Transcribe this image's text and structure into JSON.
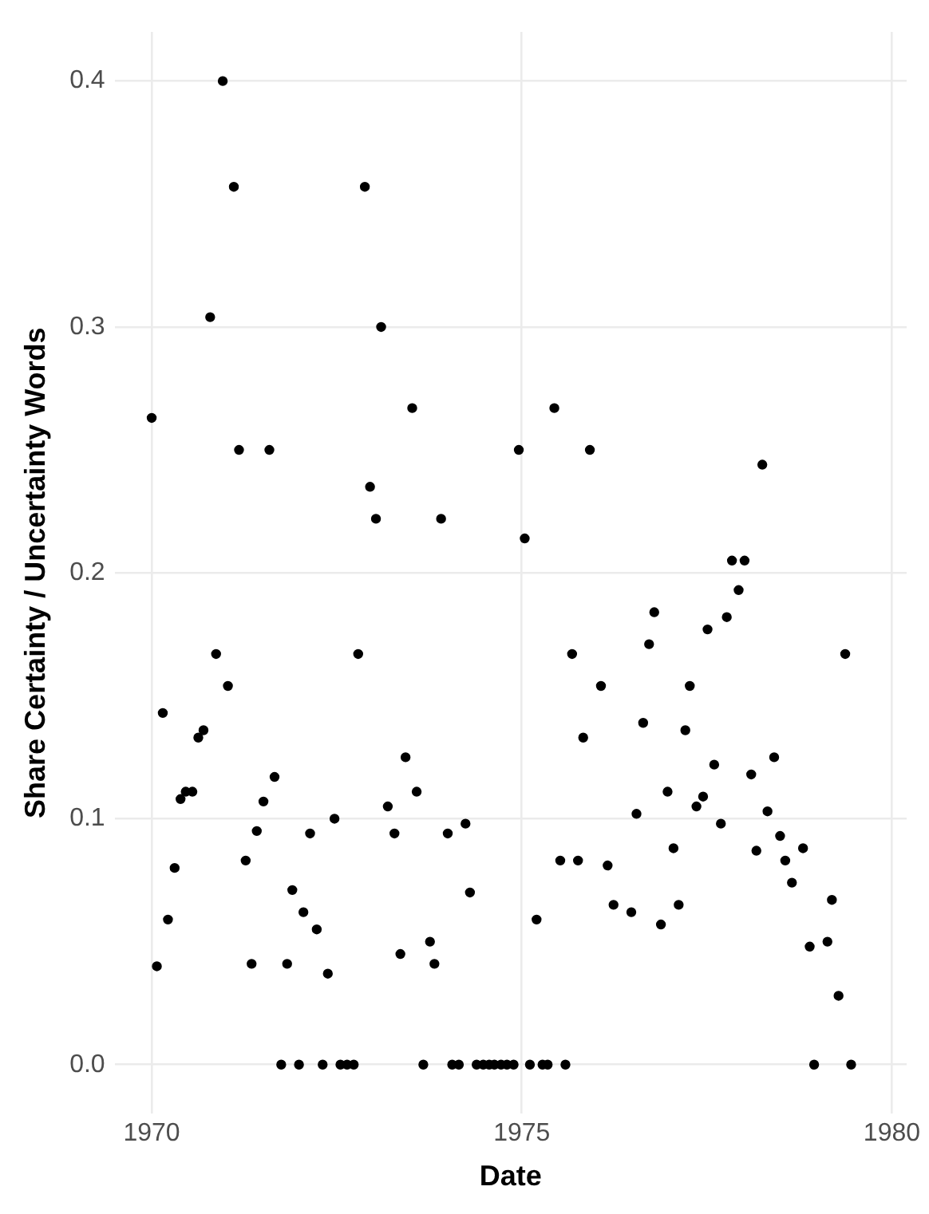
{
  "chart_data": {
    "type": "scatter",
    "xlabel": "Date",
    "ylabel": "Share Certainty / Uncertainty Words",
    "xlim": [
      1969.5,
      1980.2
    ],
    "xticks": [
      1970,
      1975,
      1980
    ],
    "ylim": [
      -0.02,
      0.42
    ],
    "yticks": [
      {
        "value": 0,
        "label": "0.0"
      },
      0.1,
      0.2,
      0.3,
      0.4
    ],
    "grid": true,
    "marker": "circle",
    "legend": false,
    "series": [
      {
        "color": "#000000",
        "x": [
          1970.0,
          1970.07,
          1970.15,
          1970.22,
          1970.31,
          1970.39,
          1970.46,
          1970.55,
          1970.63,
          1970.7,
          1970.79,
          1970.87,
          1970.96,
          1971.03,
          1971.11,
          1971.18,
          1971.27,
          1971.35,
          1971.42,
          1971.51,
          1971.59,
          1971.66,
          1971.75,
          1971.83,
          1971.9,
          1971.99,
          1972.05,
          1972.14,
          1972.23,
          1972.31,
          1972.38,
          1972.47,
          1972.55,
          1972.64,
          1972.73,
          1972.79,
          1972.88,
          1972.95,
          1973.03,
          1973.1,
          1973.19,
          1973.28,
          1973.36,
          1973.43,
          1973.52,
          1973.58,
          1973.67,
          1973.76,
          1973.82,
          1973.91,
          1974.0,
          1974.06,
          1974.15,
          1974.24,
          1974.3,
          1974.39,
          1974.48,
          1974.56,
          1974.63,
          1974.72,
          1974.8,
          1974.89,
          1974.96,
          1975.04,
          1975.11,
          1975.2,
          1975.28,
          1975.35,
          1975.44,
          1975.52,
          1975.59,
          1975.68,
          1975.76,
          1975.83,
          1975.92,
          1976.07,
          1976.16,
          1976.24,
          1976.48,
          1976.55,
          1976.64,
          1976.72,
          1976.79,
          1976.88,
          1976.97,
          1977.05,
          1977.12,
          1977.21,
          1977.27,
          1977.36,
          1977.45,
          1977.51,
          1977.6,
          1977.69,
          1977.77,
          1977.84,
          1977.93,
          1978.01,
          1978.1,
          1978.17,
          1978.25,
          1978.32,
          1978.41,
          1978.49,
          1978.56,
          1978.65,
          1978.8,
          1978.89,
          1978.95,
          1979.13,
          1979.19,
          1979.28,
          1979.37,
          1979.45
        ],
        "values": [
          0.263,
          0.04,
          0.143,
          0.059,
          0.08,
          0.108,
          0.111,
          0.111,
          0.133,
          0.136,
          0.304,
          0.167,
          0.4,
          0.154,
          0.357,
          0.25,
          0.083,
          0.041,
          0.095,
          0.107,
          0.25,
          0.117,
          0,
          0.041,
          0.071,
          0,
          0.062,
          0.094,
          0.055,
          0,
          0.037,
          0.1,
          0,
          0,
          0,
          0.167,
          0.357,
          0.235,
          0.222,
          0.3,
          0.105,
          0.094,
          0.045,
          0.125,
          0.267,
          0.111,
          0,
          0.05,
          0.041,
          0.222,
          0.094,
          0,
          0,
          0.098,
          0.07,
          0,
          0,
          0,
          0,
          0,
          0,
          0,
          0.25,
          0.214,
          0,
          0.059,
          0,
          0,
          0.267,
          0.083,
          0,
          0.167,
          0.083,
          0.133,
          0.25,
          0.154,
          0.081,
          0.065,
          0.062,
          0.102,
          0.139,
          0.171,
          0.184,
          0.057,
          0.111,
          0.088,
          0.065,
          0.136,
          0.154,
          0.105,
          0.109,
          0.177,
          0.122,
          0.098,
          0.182,
          0.205,
          0.193,
          0.205,
          0.118,
          0.087,
          0.244,
          0.103,
          0.125,
          0.093,
          0.083,
          0.074,
          0.088,
          0.048,
          0,
          0.05,
          0.067,
          0.028,
          0.167,
          0
        ]
      }
    ]
  }
}
